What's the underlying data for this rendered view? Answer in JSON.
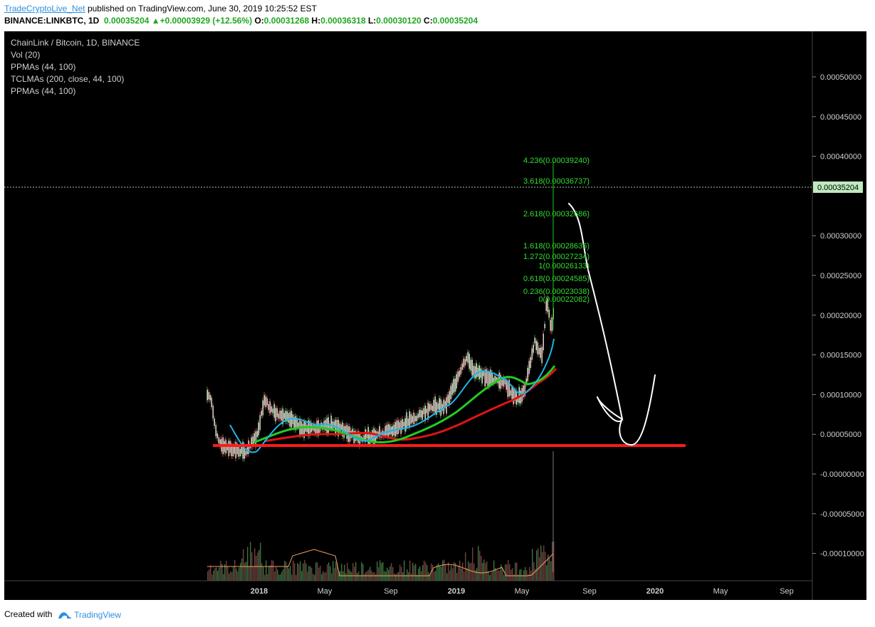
{
  "header": {
    "author": "TradeCryptoLive_Net",
    "published_text": "published on TradingView.com, June 30, 2019 10:25:52 EST",
    "symbol": "BINANCE:LINKBTC, 1D",
    "last": "0.00035204",
    "change": "+0.00003929 (+12.56%)",
    "o_label": "O:",
    "o_value": "0.00031268",
    "h_label": "H:",
    "h_value": "0.00036318",
    "l_label": "L:",
    "l_value": "0.00030120",
    "c_label": "C:",
    "c_value": "0.00035204"
  },
  "legend": {
    "title": "ChainLink / Bitcoin, 1D, BINANCE",
    "lines": [
      "Vol (20)",
      "PPMAs (44, 100)",
      "TCLMAs (200, close, 44, 100)",
      "PPMAs (44, 100)"
    ]
  },
  "price_axis": {
    "ticks": [
      "0.00050000",
      "0.00045000",
      "0.00040000",
      "0.00030000",
      "0.00025000",
      "0.00020000",
      "0.00015000",
      "0.00010000",
      "0.00005000",
      "-0.00000000",
      "-0.00005000",
      "-0.00010000"
    ],
    "current_price_tag": "0.00035204"
  },
  "time_axis": {
    "labels": [
      "2018",
      "May",
      "Sep",
      "2019",
      "May",
      "Sep",
      "2020",
      "May",
      "Sep"
    ]
  },
  "fib_levels": [
    {
      "ratio": "4.236",
      "text": "4.236(0.00039240)"
    },
    {
      "ratio": "3.618",
      "text": "3.618(0.00036737)"
    },
    {
      "ratio": "2.618",
      "text": "2.618(0.00032686)"
    },
    {
      "ratio": "1.618",
      "text": "1.618(0.00028636)"
    },
    {
      "ratio": "1.272",
      "text": "1.272(0.00027234)"
    },
    {
      "ratio": "1",
      "text": "1(0.00026133)"
    },
    {
      "ratio": "0.618",
      "text": "0.618(0.00024585)"
    },
    {
      "ratio": "0.236",
      "text": "0.236(0.00023038)"
    },
    {
      "ratio": "0",
      "text": "0(0.00022082)"
    }
  ],
  "colors": {
    "background": "#000000",
    "support_line": "#ff1a1a",
    "ma_red": "#e01414",
    "ma_green": "#22cc22",
    "ma_blue": "#1eb6e6",
    "fib_text": "#33dd33",
    "forecast_arrow": "#ffffff",
    "volume_line": "#f0a060"
  },
  "footer": {
    "created_with": "Created with",
    "brand": "TradingView"
  }
}
